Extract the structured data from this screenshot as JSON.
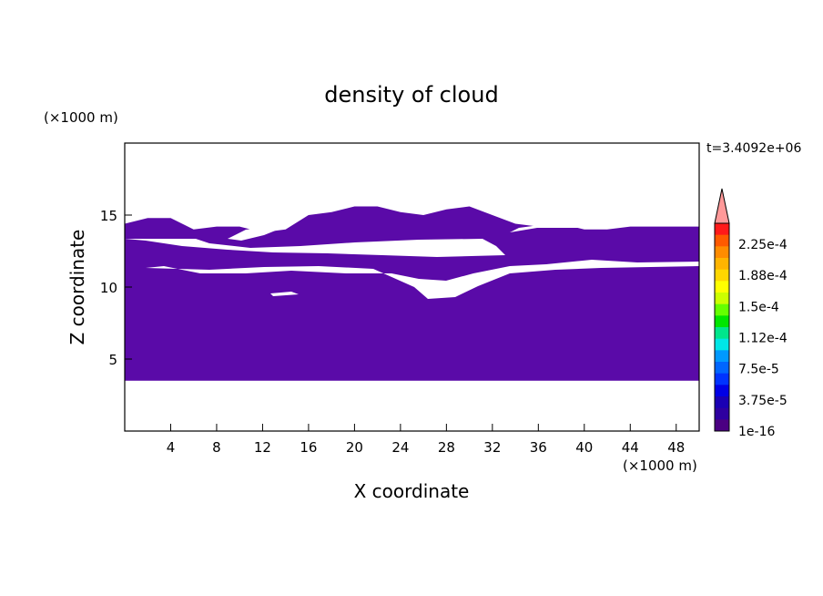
{
  "chart_data": {
    "type": "heatmap",
    "title": "density of cloud",
    "xlabel": "X coordinate",
    "ylabel": "Z coordinate",
    "x_unit": "(×1000 m)",
    "y_unit": "(×1000 m)",
    "time_label": "t=3.4092e+06",
    "xlim": [
      0,
      50
    ],
    "ylim": [
      0,
      20
    ],
    "x_ticks": [
      4,
      8,
      12,
      16,
      20,
      24,
      28,
      32,
      36,
      40,
      44,
      48
    ],
    "y_ticks": [
      5,
      10,
      15
    ],
    "fill_color": "#5a0aa8",
    "cloud_profile": {
      "x": [
        0,
        2,
        4,
        6,
        8,
        10,
        12,
        14,
        16,
        18,
        20,
        22,
        24,
        26,
        28,
        30,
        32,
        34,
        36,
        38,
        40,
        42,
        44,
        46,
        48,
        50
      ],
      "base": [
        3.5,
        3.5,
        3.5,
        3.5,
        3.5,
        3.5,
        3.5,
        3.5,
        3.5,
        3.5,
        3.5,
        3.5,
        3.5,
        3.5,
        3.5,
        3.5,
        3.5,
        3.5,
        3.5,
        3.5,
        3.5,
        3.5,
        3.5,
        3.5,
        3.5,
        3.5
      ],
      "top": [
        14.4,
        14.8,
        14.8,
        14.0,
        14.2,
        14.2,
        13.8,
        14.0,
        15.0,
        15.2,
        15.6,
        15.6,
        15.2,
        15.0,
        15.4,
        15.6,
        15.0,
        14.4,
        14.2,
        14.4,
        14.0,
        14.0,
        14.2,
        14.2,
        14.2,
        14.2
      ]
    },
    "colorbar": {
      "levels": [
        "2.25e-4",
        "1.88e-4",
        "1.5e-4",
        "1.12e-4",
        "7.5e-5",
        "3.75e-5",
        "1e-16"
      ],
      "colors": [
        "#ff9999",
        "#ff1a1a",
        "#ff5a00",
        "#ff8c00",
        "#ffb400",
        "#ffd700",
        "#ffff00",
        "#ccff00",
        "#66ff00",
        "#00e600",
        "#00e68c",
        "#00e6e6",
        "#0099ff",
        "#0066ff",
        "#0033ff",
        "#0000e6",
        "#1a00b4",
        "#2e00a0",
        "#4b0082"
      ]
    }
  }
}
